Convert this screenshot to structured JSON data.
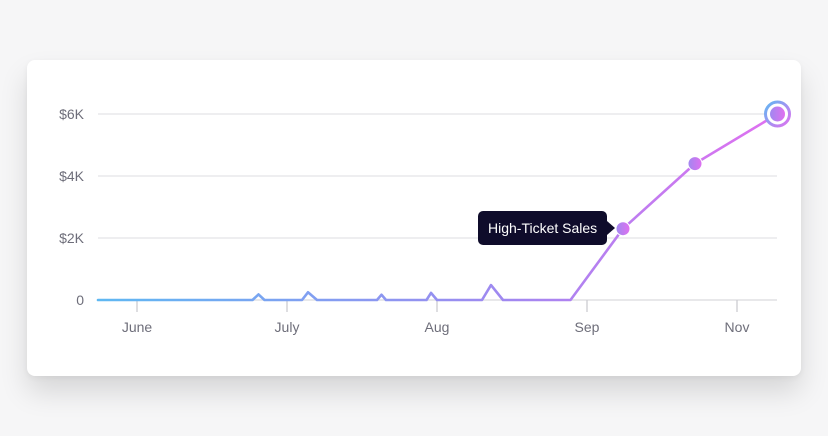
{
  "colors": {
    "gradient_start": "#5fb8f2",
    "gradient_mid": "#a088f0",
    "gradient_end": "#e070f0",
    "tooltip_bg": "#0f0c2b"
  },
  "tooltip": {
    "label": "High-Ticket Sales"
  },
  "chart_data": {
    "type": "line",
    "title": "",
    "xlabel": "",
    "ylabel": "",
    "grid": true,
    "y_ticks": [
      {
        "value": 0,
        "label": "0"
      },
      {
        "value": 2000,
        "label": "$2K"
      },
      {
        "value": 4000,
        "label": "$4K"
      },
      {
        "value": 6000,
        "label": "$6K"
      }
    ],
    "x_ticks": [
      {
        "value": 0.5,
        "label": "June"
      },
      {
        "value": 1.5,
        "label": "July"
      },
      {
        "value": 2.5,
        "label": "Aug"
      },
      {
        "value": 3.5,
        "label": "Sep"
      },
      {
        "value": 4.5,
        "label": "Nov"
      }
    ],
    "xlim": [
      0.24,
      4.77
    ],
    "ylim": [
      0,
      6000
    ],
    "series": [
      {
        "points": [
          {
            "x": 0.24,
            "y": 0
          },
          {
            "x": 1.27,
            "y": 0
          },
          {
            "x": 1.31,
            "y": 180
          },
          {
            "x": 1.35,
            "y": 0
          },
          {
            "x": 1.6,
            "y": 0
          },
          {
            "x": 1.64,
            "y": 250
          },
          {
            "x": 1.7,
            "y": 0
          },
          {
            "x": 2.1,
            "y": 0
          },
          {
            "x": 2.13,
            "y": 170
          },
          {
            "x": 2.16,
            "y": 0
          },
          {
            "x": 2.43,
            "y": 0
          },
          {
            "x": 2.46,
            "y": 230
          },
          {
            "x": 2.5,
            "y": 0
          },
          {
            "x": 2.8,
            "y": 0
          },
          {
            "x": 2.86,
            "y": 480
          },
          {
            "x": 2.94,
            "y": 0
          },
          {
            "x": 3.39,
            "y": 0
          },
          {
            "x": 3.74,
            "y": 2300
          },
          {
            "x": 4.22,
            "y": 4400
          },
          {
            "x": 4.77,
            "y": 6000
          }
        ],
        "markers": [
          {
            "x": 3.74,
            "y": 2300
          },
          {
            "x": 4.22,
            "y": 4400
          },
          {
            "x": 4.77,
            "y": 6000,
            "highlighted": true
          }
        ],
        "tooltip_at": {
          "x": 3.74,
          "y": 2300
        }
      }
    ]
  }
}
